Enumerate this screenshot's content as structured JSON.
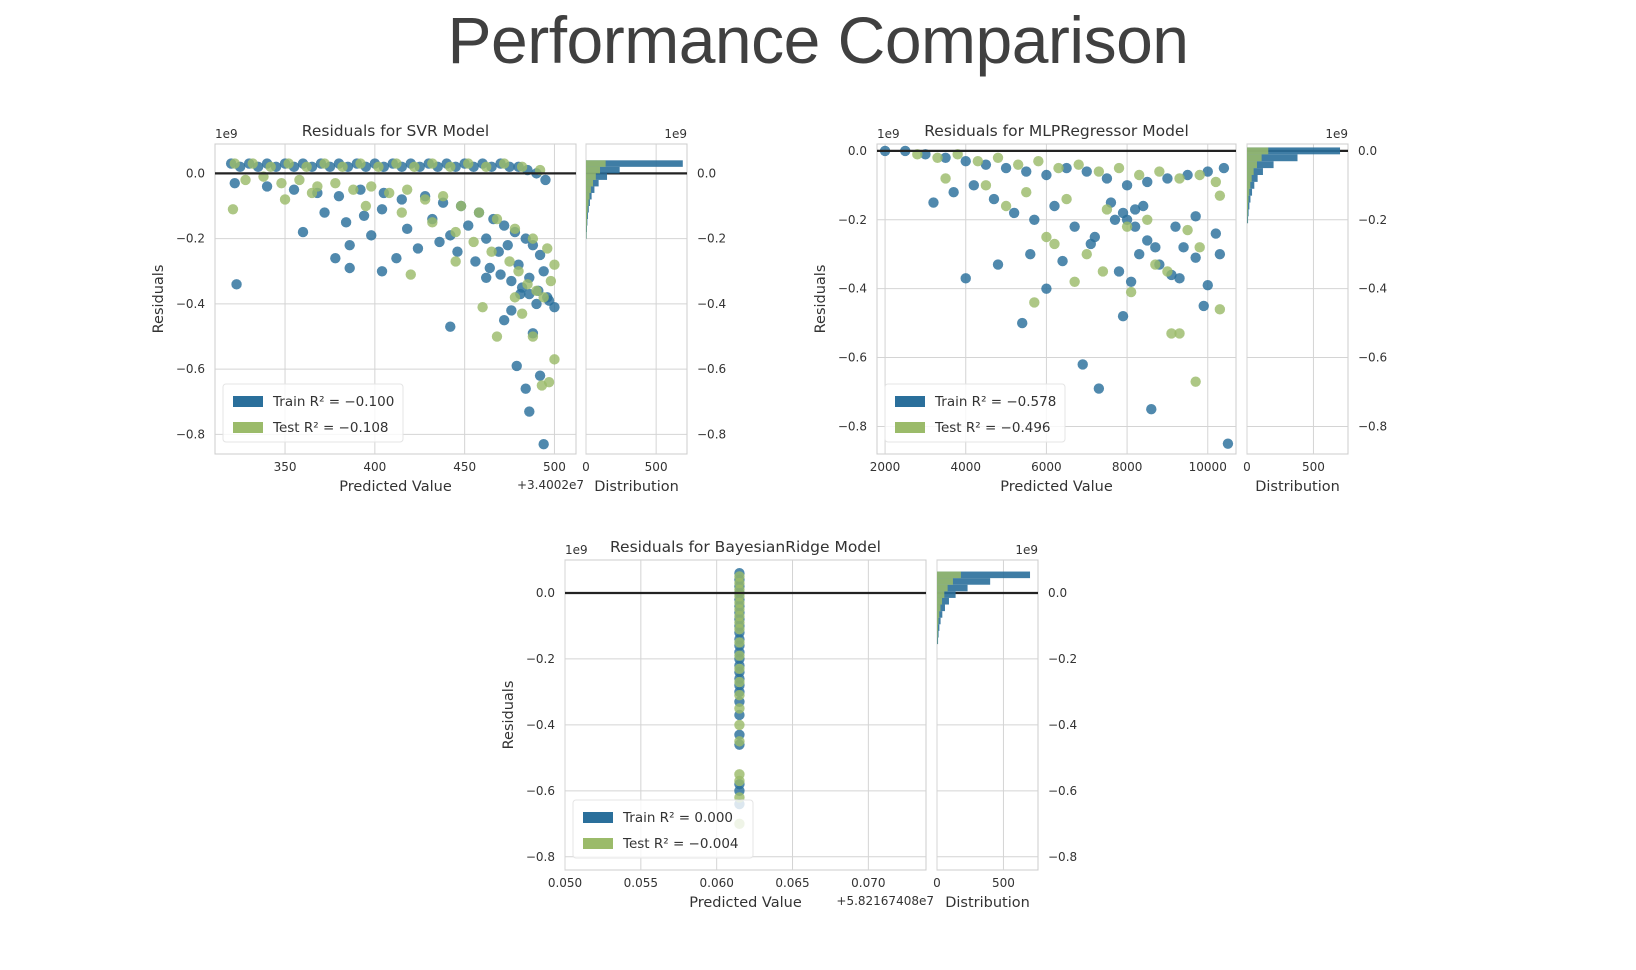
{
  "page": {
    "title": "Performance Comparison"
  },
  "colors": {
    "train": "#2a6f9b",
    "test": "#9bbb6a",
    "zero_line": "#222222",
    "grid": "#d4d4d4",
    "frame": "#cccccc"
  },
  "chart_data": [
    {
      "type": "scatter",
      "title": "Residuals for SVR Model",
      "xlabel": "Predicted Value",
      "ylabel": "Residuals",
      "x_offset_label": "+3.4002e7",
      "y_scale_label": "1e9",
      "xlim": [
        311,
        512
      ],
      "ylim": [
        -0.86,
        0.09
      ],
      "x_ticks": [
        "350",
        "400",
        "450",
        "500"
      ],
      "x_tick_values": [
        350,
        400,
        450,
        500
      ],
      "y_ticks": [
        "0.0",
        "−0.2",
        "−0.4",
        "−0.6",
        "−0.8"
      ],
      "y_tick_values": [
        0,
        -0.2,
        -0.4,
        -0.6,
        -0.8
      ],
      "grid": true,
      "legend_position": "lower-left",
      "series": [
        {
          "name": "Train",
          "legend": "Train R² = −0.100",
          "x": [
            320,
            325,
            330,
            335,
            340,
            345,
            350,
            355,
            360,
            365,
            370,
            375,
            380,
            385,
            390,
            395,
            400,
            405,
            410,
            415,
            420,
            425,
            430,
            435,
            440,
            445,
            450,
            455,
            460,
            465,
            470,
            475,
            480,
            485,
            490,
            495,
            322,
            340,
            355,
            368,
            380,
            392,
            405,
            415,
            428,
            438,
            448,
            458,
            466,
            472,
            478,
            484,
            488,
            492,
            494,
            386,
            398,
            412,
            424,
            436,
            446,
            456,
            464,
            470,
            476,
            482,
            486,
            490,
            496,
            360,
            372,
            384,
            394,
            404,
            418,
            432,
            442,
            452,
            462,
            474,
            480,
            486,
            491,
            497,
            500,
            323,
            378,
            386,
            404,
            442,
            472,
            479,
            484,
            486,
            492,
            494,
            488,
            462,
            469,
            476,
            481
          ],
          "y": [
            0.03,
            0.02,
            0.03,
            0.02,
            0.03,
            0.02,
            0.03,
            0.02,
            0.03,
            0.02,
            0.03,
            0.02,
            0.03,
            0.02,
            0.03,
            0.02,
            0.03,
            0.02,
            0.03,
            0.02,
            0.03,
            0.02,
            0.03,
            0.02,
            0.03,
            0.02,
            0.03,
            0.02,
            0.03,
            0.02,
            0.03,
            0.02,
            0.02,
            0.01,
            0.0,
            -0.02,
            -0.03,
            -0.04,
            -0.05,
            -0.06,
            -0.07,
            -0.05,
            -0.06,
            -0.08,
            -0.07,
            -0.09,
            -0.1,
            -0.12,
            -0.14,
            -0.16,
            -0.18,
            -0.2,
            -0.22,
            -0.25,
            -0.3,
            -0.22,
            -0.19,
            -0.26,
            -0.23,
            -0.21,
            -0.24,
            -0.27,
            -0.29,
            -0.31,
            -0.33,
            -0.35,
            -0.37,
            -0.4,
            -0.38,
            -0.18,
            -0.12,
            -0.15,
            -0.13,
            -0.11,
            -0.17,
            -0.14,
            -0.19,
            -0.16,
            -0.2,
            -0.22,
            -0.28,
            -0.32,
            -0.36,
            -0.39,
            -0.41,
            -0.34,
            -0.26,
            -0.29,
            -0.3,
            -0.47,
            -0.45,
            -0.59,
            -0.66,
            -0.73,
            -0.62,
            -0.83,
            -0.49,
            -0.32,
            -0.24,
            -0.42,
            -0.37
          ]
        },
        {
          "name": "Test",
          "legend": "Test R² = −0.108",
          "x": [
            322,
            332,
            342,
            352,
            362,
            372,
            382,
            392,
            402,
            412,
            422,
            432,
            442,
            452,
            462,
            472,
            482,
            492,
            328,
            338,
            348,
            358,
            368,
            378,
            388,
            398,
            408,
            418,
            428,
            438,
            448,
            458,
            468,
            478,
            488,
            496,
            500,
            350,
            365,
            395,
            415,
            432,
            445,
            455,
            465,
            475,
            480,
            485,
            490,
            494,
            498,
            321,
            420,
            445,
            460,
            468,
            478,
            482,
            488,
            493,
            497,
            500
          ],
          "y": [
            0.03,
            0.03,
            0.02,
            0.03,
            0.02,
            0.03,
            0.02,
            0.03,
            0.02,
            0.03,
            0.02,
            0.03,
            0.02,
            0.03,
            0.02,
            0.03,
            0.02,
            0.01,
            -0.02,
            -0.01,
            -0.03,
            -0.02,
            -0.04,
            -0.03,
            -0.05,
            -0.04,
            -0.06,
            -0.05,
            -0.08,
            -0.07,
            -0.1,
            -0.12,
            -0.14,
            -0.17,
            -0.2,
            -0.23,
            -0.28,
            -0.08,
            -0.06,
            -0.1,
            -0.12,
            -0.15,
            -0.18,
            -0.21,
            -0.24,
            -0.27,
            -0.3,
            -0.34,
            -0.36,
            -0.38,
            -0.33,
            -0.11,
            -0.31,
            -0.27,
            -0.41,
            -0.5,
            -0.38,
            -0.43,
            -0.5,
            -0.65,
            -0.64,
            -0.57
          ]
        }
      ],
      "distribution": {
        "xlabel": "Distribution",
        "x_ticks": [
          "0",
          "500"
        ],
        "x_tick_values": [
          0,
          500
        ],
        "xlim": [
          0,
          720
        ],
        "bins_y": [
          0.03,
          0.01,
          -0.01,
          -0.03,
          -0.05,
          -0.07,
          -0.09,
          -0.11,
          -0.13,
          -0.15,
          -0.17,
          -0.19
        ],
        "bin_height": 0.02,
        "train_counts": [
          690,
          240,
          150,
          90,
          60,
          40,
          28,
          20,
          14,
          10,
          7,
          5
        ],
        "test_counts": [
          140,
          100,
          70,
          50,
          35,
          25,
          18,
          12,
          8,
          6,
          4,
          3
        ]
      }
    },
    {
      "type": "scatter",
      "title": "Residuals for MLPRegressor Model",
      "xlabel": "Predicted Value",
      "ylabel": "Residuals",
      "x_offset_label": "",
      "y_scale_label": "1e9",
      "xlim": [
        1800,
        10700
      ],
      "ylim": [
        -0.88,
        0.02
      ],
      "x_ticks": [
        "2000",
        "4000",
        "6000",
        "8000",
        "10000"
      ],
      "x_tick_values": [
        2000,
        4000,
        6000,
        8000,
        10000
      ],
      "y_ticks": [
        "0.0",
        "−0.2",
        "−0.4",
        "−0.6",
        "−0.8"
      ],
      "y_tick_values": [
        0,
        -0.2,
        -0.4,
        -0.6,
        -0.8
      ],
      "grid": true,
      "legend_position": "lower-left",
      "series": [
        {
          "name": "Train",
          "legend": "Train R² = −0.578",
          "x": [
            2000,
            2500,
            3000,
            3500,
            4000,
            4500,
            5000,
            5500,
            6000,
            6500,
            7000,
            7500,
            8000,
            8500,
            9000,
            9500,
            10000,
            10400,
            3200,
            3700,
            4200,
            4700,
            5200,
            5700,
            6200,
            6700,
            7200,
            7700,
            8200,
            8700,
            9200,
            9700,
            10200,
            4000,
            4800,
            5600,
            6400,
            7100,
            7800,
            8100,
            8300,
            8500,
            8800,
            9100,
            9400,
            9700,
            10000,
            10300,
            5400,
            6000,
            6900,
            7300,
            7900,
            8600,
            9300,
            9900,
            10500,
            7600,
            7900,
            8000,
            8200,
            8400
          ],
          "y": [
            0.0,
            0.0,
            -0.01,
            -0.02,
            -0.03,
            -0.04,
            -0.05,
            -0.06,
            -0.07,
            -0.05,
            -0.06,
            -0.08,
            -0.1,
            -0.09,
            -0.08,
            -0.07,
            -0.06,
            -0.05,
            -0.15,
            -0.12,
            -0.1,
            -0.14,
            -0.18,
            -0.2,
            -0.16,
            -0.22,
            -0.25,
            -0.2,
            -0.17,
            -0.28,
            -0.22,
            -0.19,
            -0.24,
            -0.37,
            -0.33,
            -0.3,
            -0.32,
            -0.27,
            -0.35,
            -0.38,
            -0.3,
            -0.26,
            -0.33,
            -0.36,
            -0.28,
            -0.31,
            -0.39,
            -0.3,
            -0.5,
            -0.4,
            -0.62,
            -0.69,
            -0.48,
            -0.75,
            -0.37,
            -0.45,
            -0.85,
            -0.15,
            -0.18,
            -0.2,
            -0.22,
            -0.16
          ]
        },
        {
          "name": "Test",
          "legend": "Test R² = −0.496",
          "x": [
            2800,
            3300,
            3800,
            4300,
            4800,
            5300,
            5800,
            6300,
            6800,
            7300,
            7800,
            8300,
            8800,
            9300,
            9800,
            10200,
            3500,
            4500,
            5500,
            6500,
            7500,
            8500,
            9500,
            10300,
            5000,
            6000,
            7000,
            8000,
            9000,
            9800,
            5700,
            6700,
            8700,
            9100,
            9300,
            9700,
            10300,
            6200,
            7400,
            8100
          ],
          "y": [
            -0.01,
            -0.02,
            -0.01,
            -0.03,
            -0.02,
            -0.04,
            -0.03,
            -0.05,
            -0.04,
            -0.06,
            -0.05,
            -0.07,
            -0.06,
            -0.08,
            -0.07,
            -0.09,
            -0.08,
            -0.1,
            -0.12,
            -0.14,
            -0.17,
            -0.2,
            -0.23,
            -0.13,
            -0.16,
            -0.25,
            -0.3,
            -0.22,
            -0.35,
            -0.28,
            -0.44,
            -0.38,
            -0.33,
            -0.53,
            -0.53,
            -0.67,
            -0.46,
            -0.27,
            -0.35,
            -0.41
          ]
        }
      ],
      "distribution": {
        "xlabel": "Distribution",
        "x_ticks": [
          "0",
          "500"
        ],
        "x_tick_values": [
          0,
          500
        ],
        "xlim": [
          0,
          760
        ],
        "bins_y": [
          0.0,
          -0.02,
          -0.04,
          -0.06,
          -0.08,
          -0.1,
          -0.12,
          -0.14,
          -0.16,
          -0.18,
          -0.2
        ],
        "bin_height": 0.02,
        "train_counts": [
          700,
          380,
          200,
          120,
          80,
          55,
          38,
          26,
          18,
          12,
          8
        ],
        "test_counts": [
          160,
          110,
          75,
          50,
          35,
          25,
          17,
          11,
          8,
          5,
          3
        ]
      }
    },
    {
      "type": "scatter",
      "title": "Residuals for BayesianRidge Model",
      "xlabel": "Predicted Value",
      "ylabel": "Residuals",
      "x_offset_label": "+5.82167408e7",
      "y_scale_label": "1e9",
      "xlim": [
        0.05,
        0.0738
      ],
      "ylim": [
        -0.84,
        0.1
      ],
      "x_ticks": [
        "0.050",
        "0.055",
        "0.060",
        "0.065",
        "0.070"
      ],
      "x_tick_values": [
        0.05,
        0.055,
        0.06,
        0.065,
        0.07
      ],
      "y_ticks": [
        "0.0",
        "−0.2",
        "−0.4",
        "−0.6",
        "−0.8"
      ],
      "y_tick_values": [
        0,
        -0.2,
        -0.4,
        -0.6,
        -0.8
      ],
      "grid": true,
      "legend_position": "lower-left",
      "series": [
        {
          "name": "Train",
          "legend": "Train R² = 0.000",
          "x": [
            0.0615,
            0.0615,
            0.0615,
            0.0615,
            0.0615,
            0.0615,
            0.0615,
            0.0615,
            0.0615,
            0.0615,
            0.0615,
            0.0615,
            0.0615,
            0.0615,
            0.0615,
            0.0615,
            0.0615,
            0.0615,
            0.0615,
            0.0615,
            0.0615,
            0.0615,
            0.0615,
            0.0615,
            0.0615,
            0.0615
          ],
          "y": [
            0.06,
            0.04,
            0.02,
            0.0,
            -0.02,
            -0.04,
            -0.06,
            -0.08,
            -0.1,
            -0.12,
            -0.14,
            -0.16,
            -0.18,
            -0.2,
            -0.22,
            -0.24,
            -0.26,
            -0.28,
            -0.3,
            -0.33,
            -0.37,
            -0.43,
            -0.46,
            -0.58,
            -0.6,
            -0.64
          ]
        },
        {
          "name": "Test",
          "legend": "Test R² = −0.004",
          "x": [
            0.0615,
            0.0615,
            0.0615,
            0.0615,
            0.0615,
            0.0615,
            0.0615,
            0.0615,
            0.0615,
            0.0615,
            0.0615,
            0.0615,
            0.0615,
            0.0615,
            0.0615,
            0.0615,
            0.0615,
            0.0615,
            0.0615,
            0.0615,
            0.0615
          ],
          "y": [
            0.05,
            0.03,
            0.01,
            -0.01,
            -0.03,
            -0.05,
            -0.07,
            -0.09,
            -0.11,
            -0.15,
            -0.19,
            -0.23,
            -0.27,
            -0.31,
            -0.35,
            -0.4,
            -0.45,
            -0.55,
            -0.57,
            -0.62,
            -0.7
          ]
        }
      ],
      "distribution": {
        "xlabel": "Distribution",
        "x_ticks": [
          "0",
          "500"
        ],
        "x_tick_values": [
          0,
          500
        ],
        "xlim": [
          0,
          760
        ],
        "bins_y": [
          0.055,
          0.035,
          0.015,
          -0.005,
          -0.025,
          -0.045,
          -0.065,
          -0.085,
          -0.105,
          -0.125,
          -0.145
        ],
        "bin_height": 0.02,
        "train_counts": [
          700,
          400,
          230,
          140,
          90,
          60,
          40,
          27,
          18,
          12,
          8
        ],
        "test_counts": [
          180,
          120,
          80,
          55,
          38,
          26,
          17,
          11,
          7,
          5,
          3
        ]
      }
    }
  ]
}
